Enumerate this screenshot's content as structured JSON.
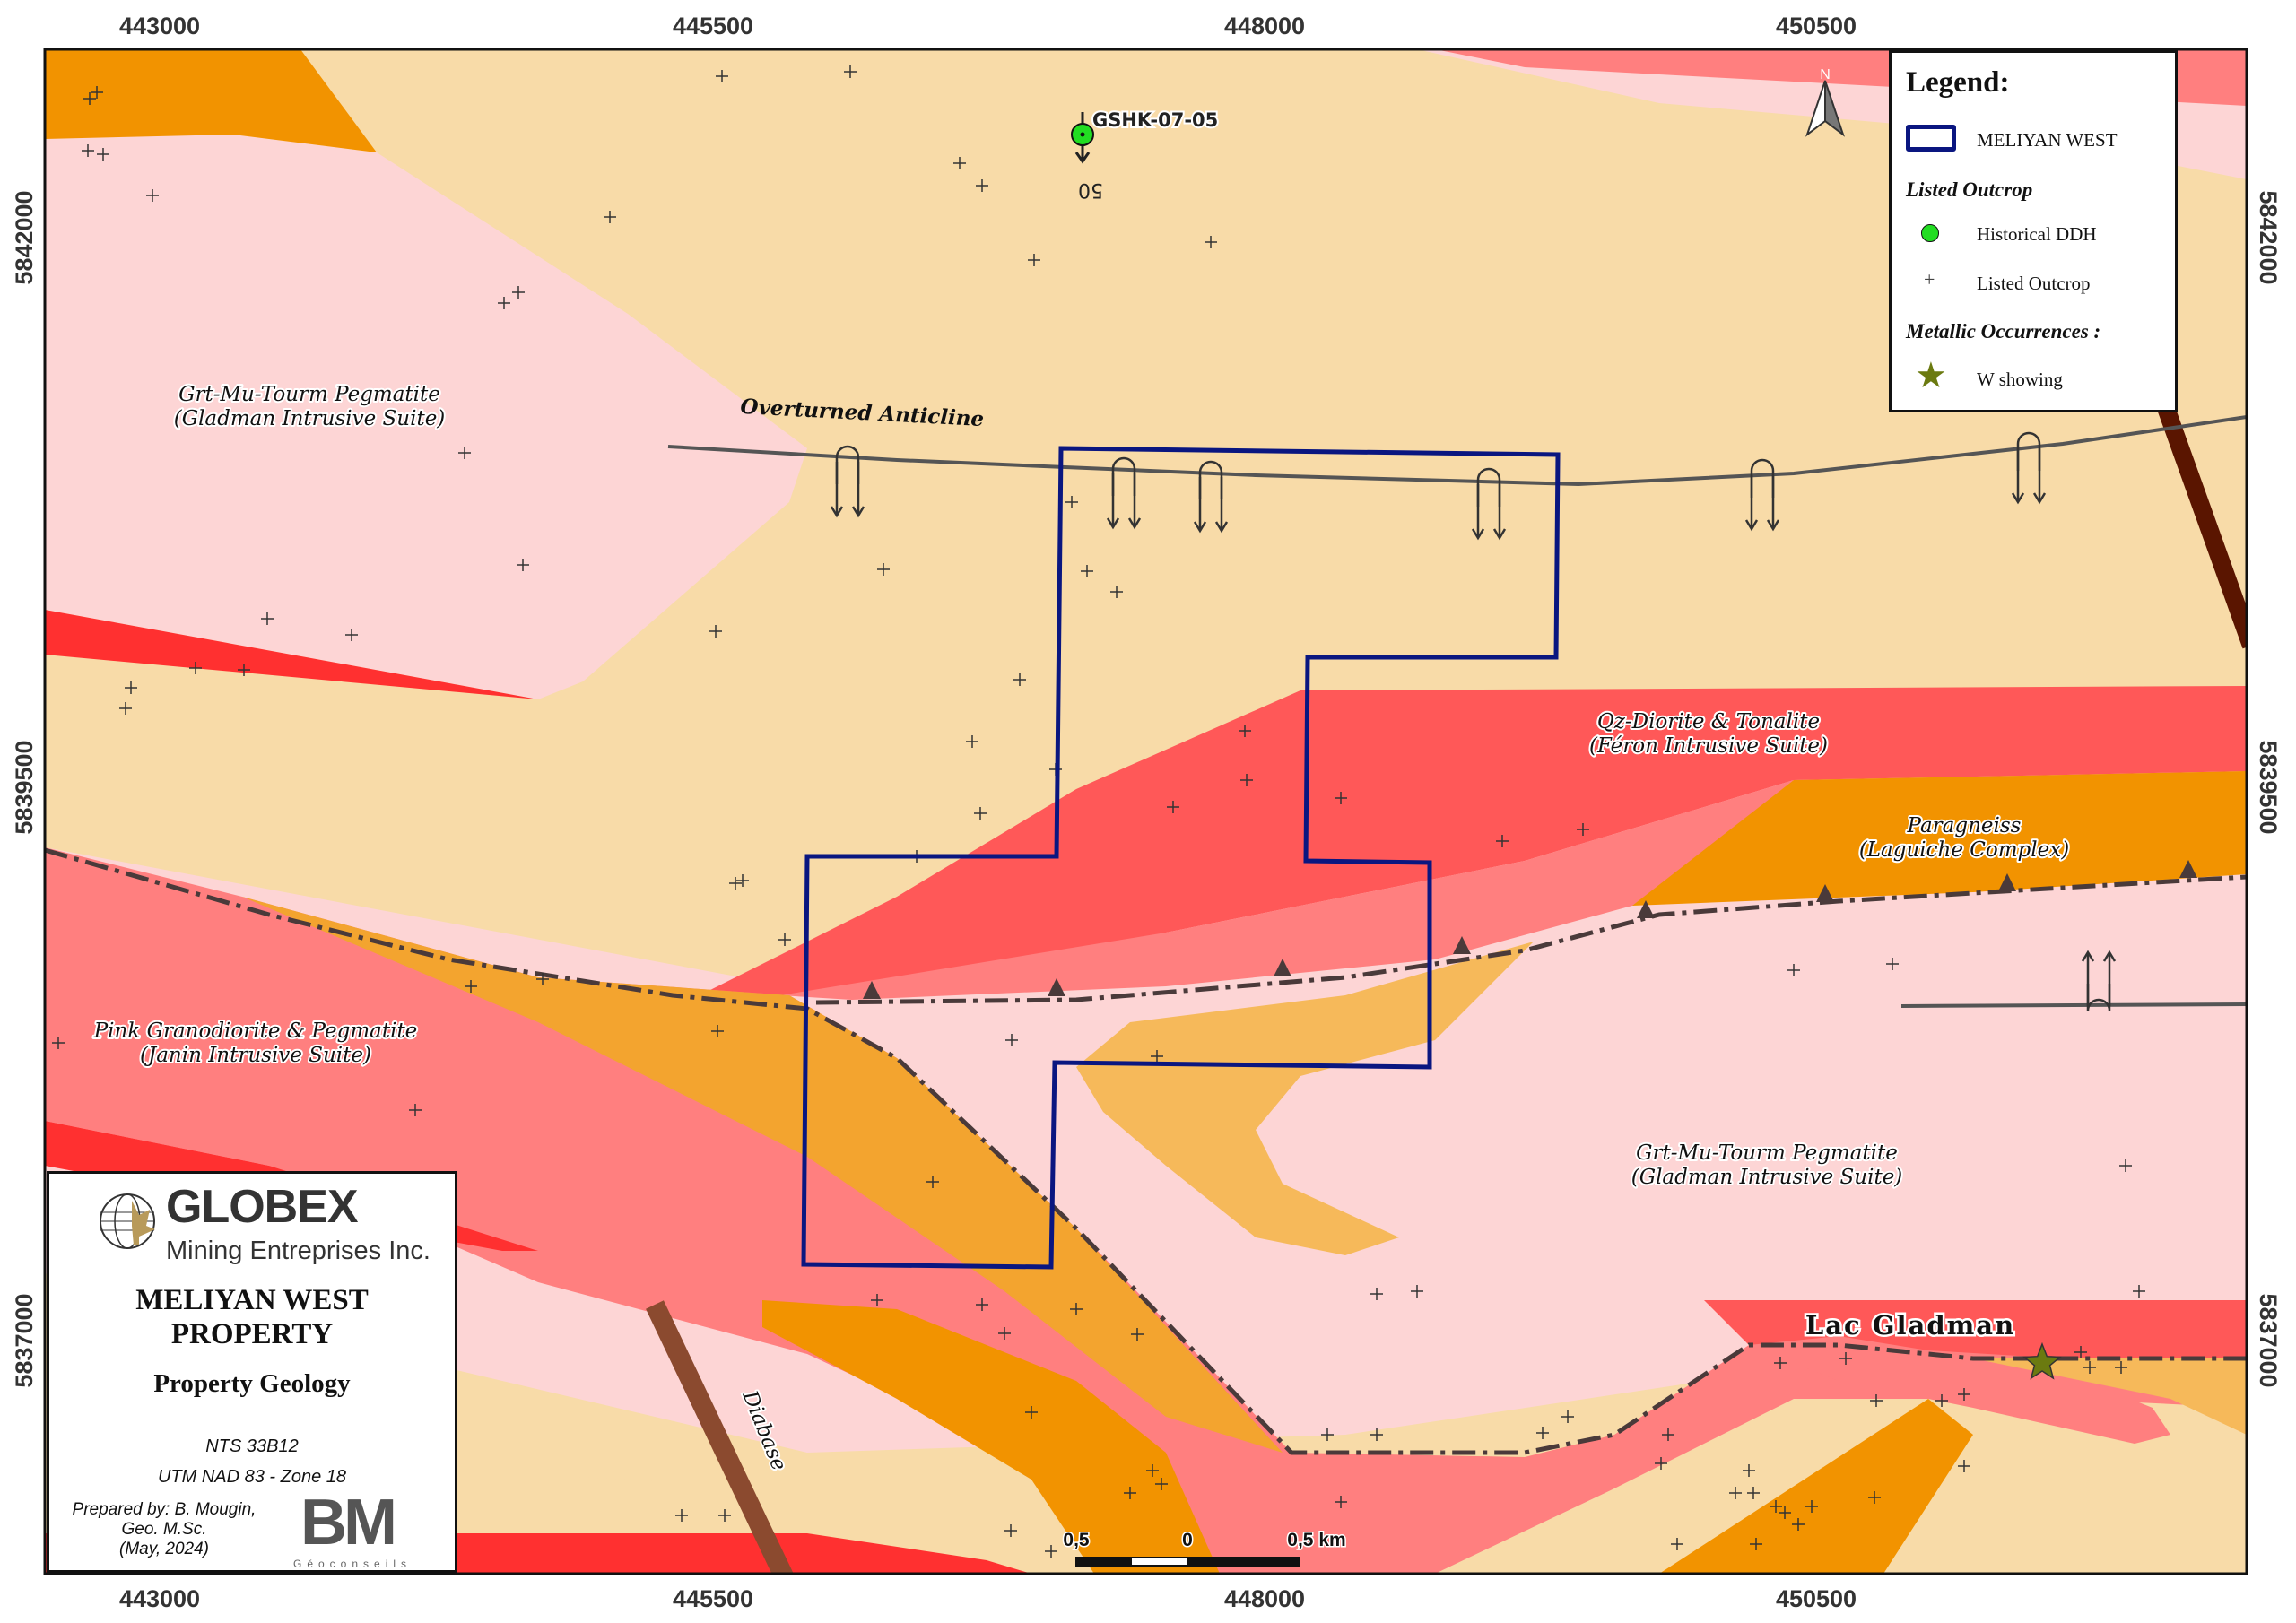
{
  "axes": {
    "x_ticks": [
      "443000",
      "445500",
      "448000",
      "450500"
    ],
    "y_ticks": [
      "5842000",
      "5839500",
      "5837000"
    ]
  },
  "colors": {
    "pegmatite": "#fdd5d5",
    "beige_unit": "#f8dba8",
    "paragneiss": "#f29300",
    "pink_granodiorite": "#ff7f7f",
    "qz_diorite": "#ff5858",
    "red_unit": "#ff3030",
    "light_orange": "#f3a42f",
    "property_outline": "#0a1680",
    "diabase": "#8b4a2f"
  },
  "map_labels": {
    "pegmatite_nw_1": "Grt-Mu-Tourm Pegmatite",
    "pegmatite_nw_2": "(Gladman Intrusive Suite)",
    "anticline": "Overturned Anticline",
    "diorite_1": "Qz-Diorite & Tonalite",
    "diorite_2": "(Féron Intrusive Suite)",
    "paragneiss_1": "Paragneiss",
    "paragneiss_2": "(Laguiche Complex)",
    "granodiorite_1": "Pink Granodiorite & Pegmatite",
    "granodiorite_2": "(Janin Intrusive Suite)",
    "pegmatite_se_1": "Grt-Mu-Tourm Pegmatite",
    "pegmatite_se_2": "(Gladman Intrusive Suite)",
    "lake": "Lac Gladman",
    "diabase": "Diabase",
    "ddh_name": "GSHK-07-05",
    "ddh_dip": "50",
    "north": "N"
  },
  "scale_bar": {
    "left": "0,5",
    "mid": "0",
    "right": "0,5 km"
  },
  "legend": {
    "title": "Legend:",
    "property": "MELIYAN WEST",
    "section_outcrop": "Listed Outcrop",
    "ddh": "Historical DDH",
    "outcrop": "Listed Outcrop",
    "section_metallic": "Metallic Occurrences :",
    "w_showing": "W showing"
  },
  "title_block": {
    "company": "GLOBEX",
    "company_sub": "Mining Entreprises Inc.",
    "property_line1": "MELIYAN WEST",
    "property_line2": "PROPERTY",
    "subtitle": "Property Geology",
    "nts": "NTS 33B12",
    "projection": "UTM NAD 83 - Zone 18",
    "prepared_1": "Prepared by: B. Mougin,",
    "prepared_2": "Geo. M.Sc.",
    "prepared_3": "(May, 2024)",
    "bm_logo": "BM",
    "bm_sub": "Géoconseils"
  }
}
